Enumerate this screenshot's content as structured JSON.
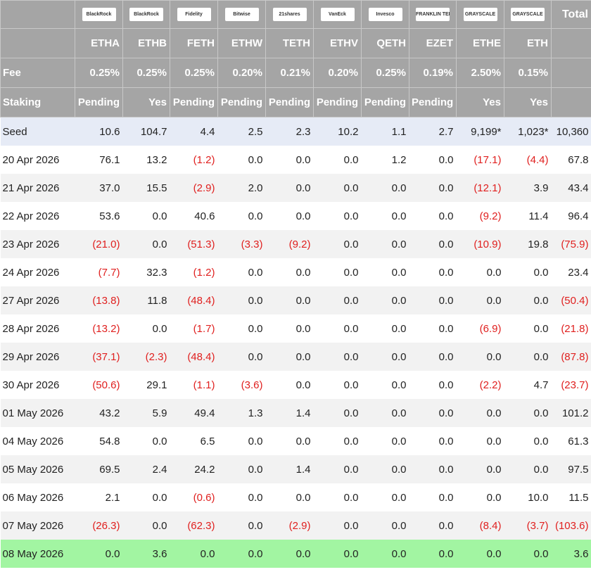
{
  "header": {
    "logos": [
      "BlackRock",
      "BlackRock",
      "Fidelity",
      "Bitwise",
      "21shares",
      "VanEck",
      "Invesco",
      "FRANKLIN TEMPLETON",
      "GRAYSCALE",
      "GRAYSCALE"
    ],
    "total_label": "Total",
    "tickers": [
      "ETHA",
      "ETHB",
      "FETH",
      "ETHW",
      "TETH",
      "ETHV",
      "QETH",
      "EZET",
      "ETHE",
      "ETH"
    ],
    "fee_label": "Fee",
    "fees": [
      "0.25%",
      "0.25%",
      "0.25%",
      "0.20%",
      "0.21%",
      "0.20%",
      "0.25%",
      "0.19%",
      "2.50%",
      "0.15%"
    ],
    "staking_label": "Staking",
    "staking": [
      "Pending",
      "Yes",
      "Pending",
      "Pending",
      "Pending",
      "Pending",
      "Pending",
      "Pending",
      "Yes",
      "Yes"
    ]
  },
  "rows": [
    {
      "date": "Seed",
      "values": [
        "10.6",
        "104.7",
        "4.4",
        "2.5",
        "2.3",
        "10.2",
        "1.1",
        "2.7",
        "9,199*",
        "1,023*",
        "10,360"
      ]
    },
    {
      "date": "20 Apr 2026",
      "values": [
        "76.1",
        "13.2",
        "(1.2)",
        "0.0",
        "0.0",
        "0.0",
        "1.2",
        "0.0",
        "(17.1)",
        "(4.4)",
        "67.8"
      ]
    },
    {
      "date": "21 Apr 2026",
      "values": [
        "37.0",
        "15.5",
        "(2.9)",
        "2.0",
        "0.0",
        "0.0",
        "0.0",
        "0.0",
        "(12.1)",
        "3.9",
        "43.4"
      ]
    },
    {
      "date": "22 Apr 2026",
      "values": [
        "53.6",
        "0.0",
        "40.6",
        "0.0",
        "0.0",
        "0.0",
        "0.0",
        "0.0",
        "(9.2)",
        "11.4",
        "96.4"
      ]
    },
    {
      "date": "23 Apr 2026",
      "values": [
        "(21.0)",
        "0.0",
        "(51.3)",
        "(3.3)",
        "(9.2)",
        "0.0",
        "0.0",
        "0.0",
        "(10.9)",
        "19.8",
        "(75.9)"
      ]
    },
    {
      "date": "24 Apr 2026",
      "values": [
        "(7.7)",
        "32.3",
        "(1.2)",
        "0.0",
        "0.0",
        "0.0",
        "0.0",
        "0.0",
        "0.0",
        "0.0",
        "23.4"
      ]
    },
    {
      "date": "27 Apr 2026",
      "values": [
        "(13.8)",
        "11.8",
        "(48.4)",
        "0.0",
        "0.0",
        "0.0",
        "0.0",
        "0.0",
        "0.0",
        "0.0",
        "(50.4)"
      ]
    },
    {
      "date": "28 Apr 2026",
      "values": [
        "(13.2)",
        "0.0",
        "(1.7)",
        "0.0",
        "0.0",
        "0.0",
        "0.0",
        "0.0",
        "(6.9)",
        "0.0",
        "(21.8)"
      ]
    },
    {
      "date": "29 Apr 2026",
      "values": [
        "(37.1)",
        "(2.3)",
        "(48.4)",
        "0.0",
        "0.0",
        "0.0",
        "0.0",
        "0.0",
        "0.0",
        "0.0",
        "(87.8)"
      ]
    },
    {
      "date": "30 Apr 2026",
      "values": [
        "(50.6)",
        "29.1",
        "(1.1)",
        "(3.6)",
        "0.0",
        "0.0",
        "0.0",
        "0.0",
        "(2.2)",
        "4.7",
        "(23.7)"
      ]
    },
    {
      "date": "01 May 2026",
      "values": [
        "43.2",
        "5.9",
        "49.4",
        "1.3",
        "1.4",
        "0.0",
        "0.0",
        "0.0",
        "0.0",
        "0.0",
        "101.2"
      ]
    },
    {
      "date": "04 May 2026",
      "values": [
        "54.8",
        "0.0",
        "6.5",
        "0.0",
        "0.0",
        "0.0",
        "0.0",
        "0.0",
        "0.0",
        "0.0",
        "61.3"
      ]
    },
    {
      "date": "05 May 2026",
      "values": [
        "69.5",
        "2.4",
        "24.2",
        "0.0",
        "1.4",
        "0.0",
        "0.0",
        "0.0",
        "0.0",
        "0.0",
        "97.5"
      ]
    },
    {
      "date": "06 May 2026",
      "values": [
        "2.1",
        "0.0",
        "(0.6)",
        "0.0",
        "0.0",
        "0.0",
        "0.0",
        "0.0",
        "0.0",
        "10.0",
        "11.5"
      ]
    },
    {
      "date": "07 May 2026",
      "values": [
        "(26.3)",
        "0.0",
        "(62.3)",
        "0.0",
        "(2.9)",
        "0.0",
        "0.0",
        "0.0",
        "(8.4)",
        "(3.7)",
        "(103.6)"
      ]
    },
    {
      "date": "08 May 2026",
      "values": [
        "0.0",
        "3.6",
        "0.0",
        "0.0",
        "0.0",
        "0.0",
        "0.0",
        "0.0",
        "0.0",
        "0.0",
        "3.6"
      ]
    }
  ]
}
